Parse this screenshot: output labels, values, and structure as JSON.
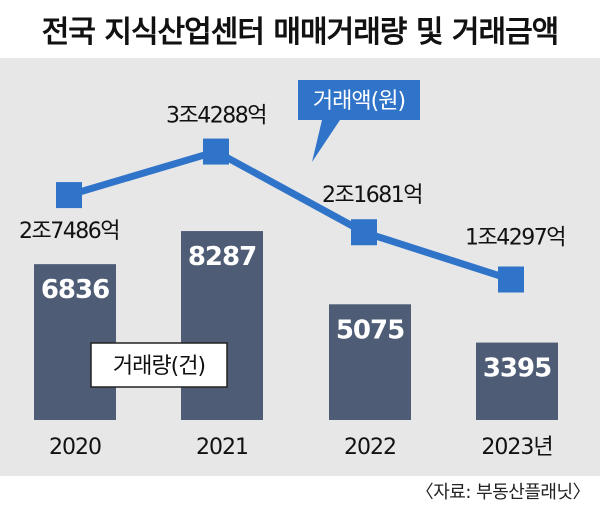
{
  "title": "전국 지식산업센터 매매거래량 및 거래금액",
  "source": "〈자료: 부동산플래닛〉",
  "colors": {
    "panel_bg": "#e7e7e8",
    "bar": "#4e5d75",
    "line": "#2f74c9",
    "text": "#111111",
    "label_white": "#ffffff"
  },
  "chart_data": {
    "type": "bar+line",
    "categories": [
      "2020",
      "2021",
      "2022",
      "2023년"
    ],
    "series": [
      {
        "name": "거래량(건)",
        "type": "bar",
        "values": [
          6836,
          8287,
          5075,
          3395
        ],
        "labels": [
          "6836",
          "8287",
          "5075",
          "3395"
        ]
      },
      {
        "name": "거래액(원)",
        "type": "line",
        "values": [
          2.7486,
          3.4288,
          2.1681,
          1.4297
        ],
        "unit": "조",
        "labels": [
          "2조7486억",
          "3조4288억",
          "2조1681억",
          "1조4297억"
        ]
      }
    ],
    "legend": [
      "거래량(건)",
      "거래액(원)"
    ]
  }
}
